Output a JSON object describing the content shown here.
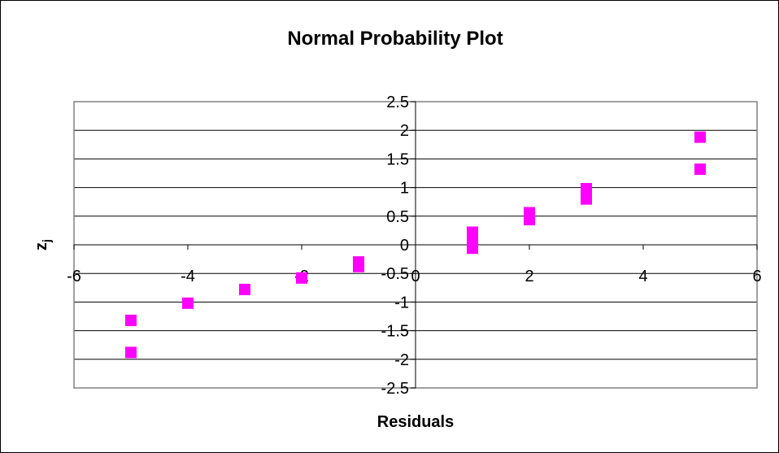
{
  "chart_data": {
    "type": "scatter",
    "title": "Normal Probability Plot",
    "xlabel": "Residuals",
    "ylabel_main": "z",
    "ylabel_sub": "j",
    "xlim": [
      -6,
      6
    ],
    "ylim": [
      -2.5,
      2.5
    ],
    "xticks": [
      -6,
      -4,
      -2,
      0,
      2,
      4,
      6
    ],
    "yticks": [
      2.5,
      2,
      1.5,
      1,
      0.5,
      0,
      -0.5,
      -1,
      -1.5,
      -2,
      -2.5
    ],
    "grid": "horizontal",
    "marker": "square",
    "marker_color": "#ff00ff",
    "plot_border_color": "#808080",
    "series": [
      {
        "x": [
          -5,
          -5,
          -4,
          -3,
          -2,
          -1,
          -1,
          1,
          1,
          1,
          1,
          2,
          2,
          3,
          3,
          5,
          5
        ],
        "y": [
          -1.88,
          -1.32,
          -1.02,
          -0.78,
          -0.58,
          -0.38,
          -0.3,
          -0.06,
          0.06,
          0.14,
          0.22,
          0.44,
          0.56,
          0.8,
          0.98,
          1.32,
          1.88
        ]
      }
    ]
  }
}
